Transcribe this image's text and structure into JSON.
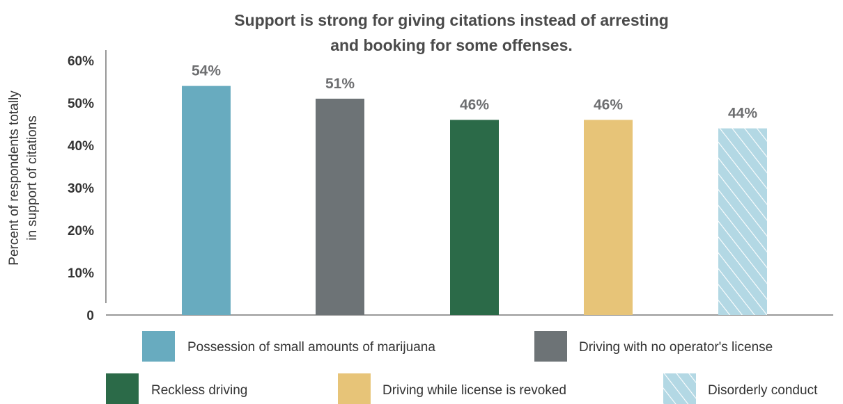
{
  "chart_data": {
    "type": "bar",
    "title_lines": [
      "Support is strong for giving citations instead of arresting",
      "and booking for some offenses."
    ],
    "ylabel_lines": [
      "Percent of respondents totally",
      "in support of citations"
    ],
    "xlabel": "",
    "ylim": [
      0,
      60
    ],
    "yticks": [
      {
        "value": 0,
        "label": "0"
      },
      {
        "value": 10,
        "label": "10%"
      },
      {
        "value": 20,
        "label": "20%"
      },
      {
        "value": 30,
        "label": "30%"
      },
      {
        "value": 40,
        "label": "40%"
      },
      {
        "value": 50,
        "label": "50%"
      },
      {
        "value": 60,
        "label": "60%"
      }
    ],
    "grid": false,
    "legend_position": "bottom",
    "bars": [
      {
        "name": "Possession of small amounts of marijuana",
        "value": 54,
        "label": "54%",
        "color": "#68abbf",
        "pattern": "solid"
      },
      {
        "name": "Driving with no operator's license",
        "value": 51,
        "label": "51%",
        "color": "#6d7376",
        "pattern": "solid"
      },
      {
        "name": "Reckless driving",
        "value": 46,
        "label": "46%",
        "color": "#2b6a48",
        "pattern": "solid"
      },
      {
        "name": "Driving while license is revoked",
        "value": 46,
        "label": "46%",
        "color": "#e7c478",
        "pattern": "solid"
      },
      {
        "name": "Disorderly conduct",
        "value": 44,
        "label": "44%",
        "color": "#b3d8e4",
        "pattern": "hatched"
      }
    ]
  }
}
